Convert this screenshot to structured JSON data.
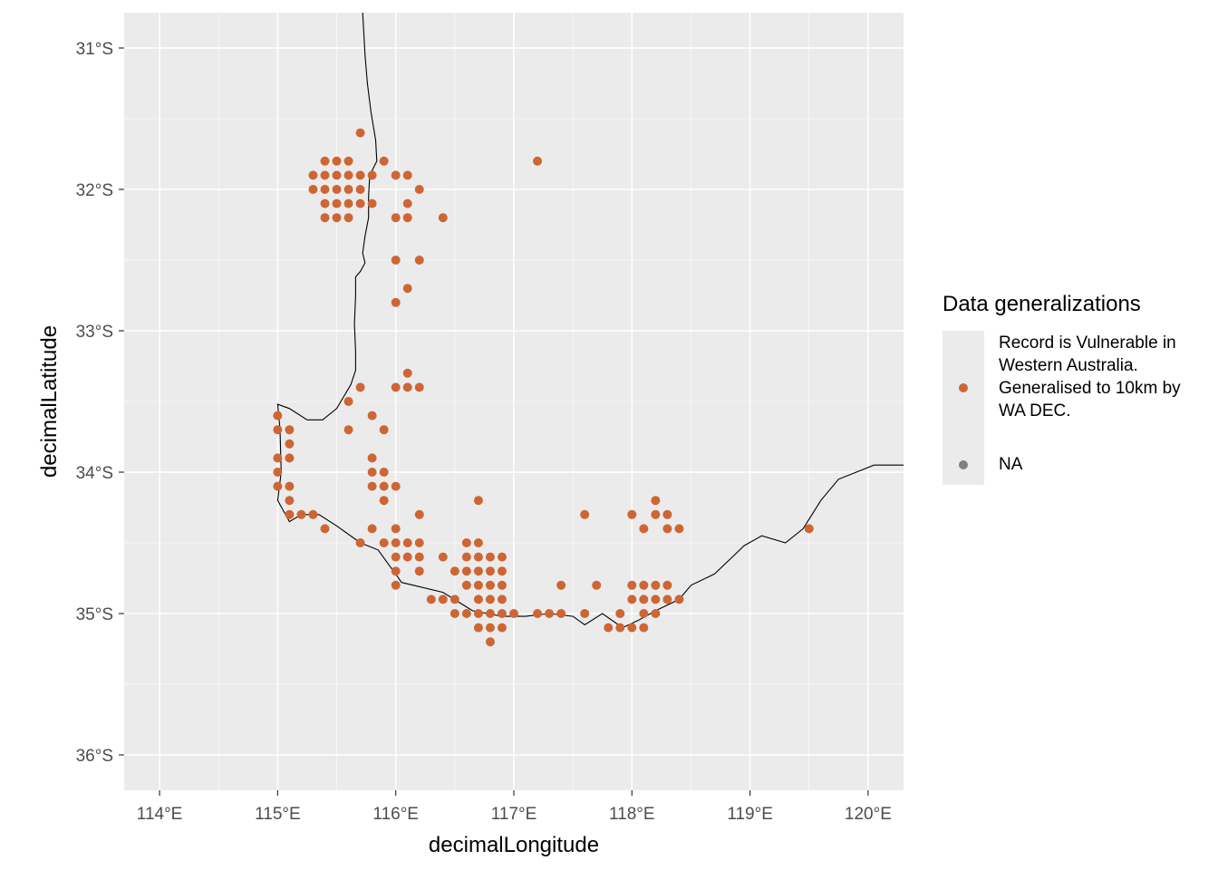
{
  "chart_data": {
    "type": "scatter",
    "xlabel": "decimalLongitude",
    "ylabel": "decimalLatitude",
    "xlim": [
      113.7,
      120.3
    ],
    "ylim": [
      -36.25,
      -30.75
    ],
    "grid": true,
    "x_ticks": [
      114,
      115,
      116,
      117,
      118,
      119,
      120
    ],
    "x_tick_labels": [
      "114°E",
      "115°E",
      "116°E",
      "117°E",
      "118°E",
      "119°E",
      "120°E"
    ],
    "y_ticks": [
      -31,
      -32,
      -33,
      -34,
      -35,
      -36
    ],
    "y_tick_labels": [
      "31°S",
      "32°S",
      "33°S",
      "34°S",
      "35°S",
      "36°S"
    ],
    "legend": {
      "position": "right",
      "title": "Data generalizations",
      "entries": [
        {
          "label": "Record is Vulnerable in Western Australia. Generalised to 10km by WA DEC.",
          "color": "#cd6634"
        },
        {
          "label": "NA",
          "color": "#7f7f7f"
        }
      ]
    },
    "point_color": "#cd6634",
    "background_color": "#ebebeb",
    "series": [
      {
        "name": "Record is Vulnerable in Western Australia. Generalised to 10km by WA DEC.",
        "points": [
          [
            115.7,
            -31.6
          ],
          [
            117.2,
            -31.8
          ],
          [
            115.4,
            -31.8
          ],
          [
            115.5,
            -31.8
          ],
          [
            115.6,
            -31.8
          ],
          [
            115.9,
            -31.8
          ],
          [
            115.3,
            -31.9
          ],
          [
            115.4,
            -31.9
          ],
          [
            115.5,
            -31.9
          ],
          [
            115.6,
            -31.9
          ],
          [
            115.7,
            -31.9
          ],
          [
            115.8,
            -31.9
          ],
          [
            116.0,
            -31.9
          ],
          [
            116.1,
            -31.9
          ],
          [
            115.3,
            -32.0
          ],
          [
            115.4,
            -32.0
          ],
          [
            115.5,
            -32.0
          ],
          [
            115.6,
            -32.0
          ],
          [
            115.7,
            -32.0
          ],
          [
            116.2,
            -32.0
          ],
          [
            115.4,
            -32.1
          ],
          [
            115.5,
            -32.1
          ],
          [
            115.6,
            -32.1
          ],
          [
            115.7,
            -32.1
          ],
          [
            115.8,
            -32.1
          ],
          [
            116.1,
            -32.1
          ],
          [
            115.4,
            -32.2
          ],
          [
            115.5,
            -32.2
          ],
          [
            115.6,
            -32.2
          ],
          [
            116.0,
            -32.2
          ],
          [
            116.1,
            -32.2
          ],
          [
            116.4,
            -32.2
          ],
          [
            116.0,
            -32.5
          ],
          [
            116.2,
            -32.5
          ],
          [
            116.1,
            -32.7
          ],
          [
            116.0,
            -32.8
          ],
          [
            116.1,
            -33.3
          ],
          [
            115.7,
            -33.4
          ],
          [
            116.0,
            -33.4
          ],
          [
            116.1,
            -33.4
          ],
          [
            116.2,
            -33.4
          ],
          [
            115.6,
            -33.5
          ],
          [
            115.0,
            -33.6
          ],
          [
            115.8,
            -33.6
          ],
          [
            115.0,
            -33.7
          ],
          [
            115.1,
            -33.7
          ],
          [
            115.6,
            -33.7
          ],
          [
            115.9,
            -33.7
          ],
          [
            115.1,
            -33.8
          ],
          [
            115.0,
            -33.9
          ],
          [
            115.1,
            -33.9
          ],
          [
            115.8,
            -33.9
          ],
          [
            115.0,
            -34.0
          ],
          [
            115.8,
            -34.0
          ],
          [
            115.9,
            -34.0
          ],
          [
            115.0,
            -34.1
          ],
          [
            115.1,
            -34.1
          ],
          [
            115.8,
            -34.1
          ],
          [
            115.9,
            -34.1
          ],
          [
            116.0,
            -34.1
          ],
          [
            115.1,
            -34.2
          ],
          [
            115.9,
            -34.2
          ],
          [
            116.7,
            -34.2
          ],
          [
            118.2,
            -34.2
          ],
          [
            115.1,
            -34.3
          ],
          [
            115.2,
            -34.3
          ],
          [
            115.3,
            -34.3
          ],
          [
            116.2,
            -34.3
          ],
          [
            117.6,
            -34.3
          ],
          [
            118.0,
            -34.3
          ],
          [
            118.2,
            -34.3
          ],
          [
            118.3,
            -34.3
          ],
          [
            115.4,
            -34.4
          ],
          [
            115.8,
            -34.4
          ],
          [
            116.0,
            -34.4
          ],
          [
            118.1,
            -34.4
          ],
          [
            118.3,
            -34.4
          ],
          [
            118.4,
            -34.4
          ],
          [
            119.5,
            -34.4
          ],
          [
            115.7,
            -34.5
          ],
          [
            115.9,
            -34.5
          ],
          [
            116.0,
            -34.5
          ],
          [
            116.1,
            -34.5
          ],
          [
            116.2,
            -34.5
          ],
          [
            116.6,
            -34.5
          ],
          [
            116.7,
            -34.5
          ],
          [
            116.0,
            -34.6
          ],
          [
            116.1,
            -34.6
          ],
          [
            116.2,
            -34.6
          ],
          [
            116.4,
            -34.6
          ],
          [
            116.6,
            -34.6
          ],
          [
            116.7,
            -34.6
          ],
          [
            116.8,
            -34.6
          ],
          [
            116.9,
            -34.6
          ],
          [
            116.0,
            -34.7
          ],
          [
            116.2,
            -34.7
          ],
          [
            116.5,
            -34.7
          ],
          [
            116.6,
            -34.7
          ],
          [
            116.7,
            -34.7
          ],
          [
            116.8,
            -34.7
          ],
          [
            116.9,
            -34.7
          ],
          [
            116.0,
            -34.8
          ],
          [
            116.6,
            -34.8
          ],
          [
            116.7,
            -34.8
          ],
          [
            116.8,
            -34.8
          ],
          [
            116.9,
            -34.8
          ],
          [
            117.4,
            -34.8
          ],
          [
            117.7,
            -34.8
          ],
          [
            118.0,
            -34.8
          ],
          [
            118.1,
            -34.8
          ],
          [
            118.2,
            -34.8
          ],
          [
            118.3,
            -34.8
          ],
          [
            116.3,
            -34.9
          ],
          [
            116.4,
            -34.9
          ],
          [
            116.5,
            -34.9
          ],
          [
            116.7,
            -34.9
          ],
          [
            116.8,
            -34.9
          ],
          [
            116.9,
            -34.9
          ],
          [
            118.0,
            -34.9
          ],
          [
            118.1,
            -34.9
          ],
          [
            118.2,
            -34.9
          ],
          [
            118.3,
            -34.9
          ],
          [
            118.4,
            -34.9
          ],
          [
            116.5,
            -35.0
          ],
          [
            116.6,
            -35.0
          ],
          [
            116.7,
            -35.0
          ],
          [
            116.8,
            -35.0
          ],
          [
            116.9,
            -35.0
          ],
          [
            117.0,
            -35.0
          ],
          [
            117.2,
            -35.0
          ],
          [
            117.3,
            -35.0
          ],
          [
            117.4,
            -35.0
          ],
          [
            117.6,
            -35.0
          ],
          [
            117.9,
            -35.0
          ],
          [
            118.1,
            -35.0
          ],
          [
            118.2,
            -35.0
          ],
          [
            116.7,
            -35.1
          ],
          [
            116.8,
            -35.1
          ],
          [
            116.9,
            -35.1
          ],
          [
            117.8,
            -35.1
          ],
          [
            117.9,
            -35.1
          ],
          [
            118.0,
            -35.1
          ],
          [
            118.1,
            -35.1
          ],
          [
            116.8,
            -35.2
          ]
        ]
      }
    ],
    "coastline": [
      [
        115.72,
        -30.75
      ],
      [
        115.73,
        -30.9
      ],
      [
        115.74,
        -31.05
      ],
      [
        115.76,
        -31.25
      ],
      [
        115.79,
        -31.45
      ],
      [
        115.83,
        -31.65
      ],
      [
        115.84,
        -31.8
      ],
      [
        115.78,
        -31.9
      ],
      [
        115.77,
        -32.05
      ],
      [
        115.77,
        -32.2
      ],
      [
        115.74,
        -32.33
      ],
      [
        115.72,
        -32.45
      ],
      [
        115.74,
        -32.52
      ],
      [
        115.7,
        -32.58
      ],
      [
        115.66,
        -32.62
      ],
      [
        115.66,
        -32.75
      ],
      [
        115.65,
        -32.95
      ],
      [
        115.66,
        -33.15
      ],
      [
        115.66,
        -33.28
      ],
      [
        115.62,
        -33.38
      ],
      [
        115.5,
        -33.55
      ],
      [
        115.38,
        -33.63
      ],
      [
        115.25,
        -33.63
      ],
      [
        115.1,
        -33.55
      ],
      [
        115.0,
        -33.52
      ],
      [
        115.02,
        -33.7
      ],
      [
        115.03,
        -34.0
      ],
      [
        115.0,
        -34.2
      ],
      [
        115.1,
        -34.35
      ],
      [
        115.2,
        -34.3
      ],
      [
        115.35,
        -34.3
      ],
      [
        115.5,
        -34.38
      ],
      [
        115.7,
        -34.5
      ],
      [
        115.85,
        -34.55
      ],
      [
        116.05,
        -34.78
      ],
      [
        116.4,
        -34.85
      ],
      [
        116.65,
        -34.98
      ],
      [
        116.9,
        -35.02
      ],
      [
        117.1,
        -35.02
      ],
      [
        117.3,
        -35.0
      ],
      [
        117.5,
        -35.02
      ],
      [
        117.6,
        -35.08
      ],
      [
        117.75,
        -35.0
      ],
      [
        117.92,
        -35.1
      ],
      [
        118.05,
        -35.05
      ],
      [
        118.2,
        -34.98
      ],
      [
        118.4,
        -34.9
      ],
      [
        118.5,
        -34.8
      ],
      [
        118.7,
        -34.72
      ],
      [
        118.85,
        -34.6
      ],
      [
        118.95,
        -34.52
      ],
      [
        119.1,
        -34.45
      ],
      [
        119.3,
        -34.5
      ],
      [
        119.45,
        -34.4
      ],
      [
        119.6,
        -34.2
      ],
      [
        119.75,
        -34.05
      ],
      [
        119.9,
        -34.0
      ],
      [
        120.05,
        -33.95
      ],
      [
        120.3,
        -33.95
      ]
    ]
  }
}
